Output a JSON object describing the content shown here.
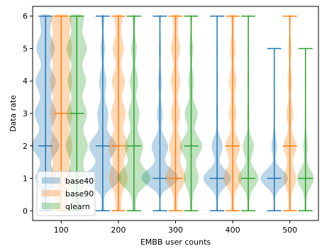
{
  "chart_data": {
    "type": "violin",
    "title": "",
    "xlabel": "EMBB user counts",
    "ylabel": "Data rate",
    "categories": [
      "100",
      "200",
      "300",
      "400",
      "500"
    ],
    "ylim": [
      -0.3,
      6.3
    ],
    "yticks": [
      0,
      1,
      2,
      3,
      4,
      5,
      6
    ],
    "grid": false,
    "legend_position": "lower-left",
    "series": [
      {
        "name": "base40",
        "color": "#1f77b4",
        "min": [
          0,
          0,
          0,
          0,
          0
        ],
        "max": [
          6,
          6,
          6,
          6,
          5
        ],
        "median": [
          2,
          2,
          1,
          1,
          1
        ],
        "density": [
          {
            "0": 0.35,
            "0.5": 0.25,
            "1": 0.55,
            "1.5": 0.3,
            "2": 0.75,
            "2.5": 0.35,
            "3": 0.6,
            "3.5": 0.3,
            "4": 0.55,
            "4.5": 0.25,
            "5": 0.5,
            "5.5": 0.25,
            "6": 0.3
          },
          {
            "0": 0.1,
            "0.5": 0.15,
            "1": 1.0,
            "1.5": 0.4,
            "2": 0.75,
            "2.5": 0.25,
            "3": 0.3,
            "3.5": 0.12,
            "4": 0.2,
            "4.5": 0.06,
            "5": 0.12,
            "5.5": 0.04,
            "6": 0.08
          },
          {
            "0": 0.05,
            "0.5": 0.1,
            "1": 1.0,
            "1.5": 0.3,
            "2": 0.45,
            "2.5": 0.1,
            "3": 0.15,
            "3.5": 0.05,
            "4": 0.1,
            "4.5": 0.03,
            "5": 0.06,
            "5.5": 0.02,
            "6": 0.04
          },
          {
            "0": 0.05,
            "0.5": 0.12,
            "1": 0.75,
            "1.5": 0.15,
            "2": 0.3,
            "2.5": 0.05,
            "3": 0.06,
            "3.5": 0.02,
            "4": 0.04,
            "4.5": 0.02,
            "5": 0.03,
            "5.5": 0.01,
            "6": 0.02
          },
          {
            "0": 0.05,
            "0.5": 0.1,
            "1": 0.75,
            "1.5": 0.1,
            "2": 0.15,
            "2.5": 0.04,
            "3": 0.03,
            "3.5": 0.01,
            "4": 0.02,
            "4.5": 0.01,
            "5": 0.02
          }
        ]
      },
      {
        "name": "base90",
        "color": "#ff7f0e",
        "min": [
          0,
          0,
          0,
          0,
          0
        ],
        "max": [
          6,
          6,
          6,
          6,
          6
        ],
        "median": [
          3,
          2,
          1,
          2,
          2
        ],
        "density": [
          {
            "0": 0.45,
            "0.5": 0.4,
            "1": 0.6,
            "1.5": 0.45,
            "2": 0.6,
            "2.5": 0.45,
            "3": 0.6,
            "3.5": 0.45,
            "4": 0.6,
            "4.5": 0.45,
            "5": 0.6,
            "5.5": 0.45,
            "6": 0.5
          },
          {
            "0": 0.15,
            "0.5": 0.2,
            "1": 0.5,
            "1.5": 0.3,
            "2": 0.55,
            "2.5": 0.25,
            "3": 0.4,
            "3.5": 0.2,
            "4": 0.35,
            "4.5": 0.15,
            "5": 0.3,
            "5.5": 0.15,
            "6": 0.2
          },
          {
            "0": 0.1,
            "0.5": 0.15,
            "1": 0.55,
            "1.5": 0.25,
            "2": 0.35,
            "2.5": 0.15,
            "3": 0.25,
            "3.5": 0.12,
            "4": 0.25,
            "4.5": 0.12,
            "5": 0.25,
            "5.5": 0.12,
            "6": 0.15
          },
          {
            "0": 0.1,
            "0.5": 0.12,
            "1": 0.5,
            "1.5": 0.2,
            "2": 0.4,
            "2.5": 0.12,
            "3": 0.2,
            "3.5": 0.1,
            "4": 0.2,
            "4.5": 0.08,
            "5": 0.15,
            "5.5": 0.06,
            "6": 0.1
          },
          {
            "0": 0.08,
            "0.5": 0.1,
            "1": 0.35,
            "1.5": 0.15,
            "2": 0.35,
            "2.5": 0.1,
            "3": 0.18,
            "3.5": 0.06,
            "4": 0.12,
            "4.5": 0.04,
            "5": 0.08,
            "5.5": 0.03,
            "6": 0.05
          }
        ]
      },
      {
        "name": "qlearn",
        "color": "#2ca02c",
        "min": [
          0,
          0,
          0,
          0,
          0
        ],
        "max": [
          6,
          6,
          6,
          6,
          5
        ],
        "median": [
          3,
          2,
          2,
          1,
          1
        ],
        "density": [
          {
            "0": 0.3,
            "0.5": 0.3,
            "1": 0.5,
            "1.5": 0.35,
            "2": 0.6,
            "2.5": 0.35,
            "3": 0.55,
            "3.5": 0.3,
            "4": 0.5,
            "4.5": 0.3,
            "5": 0.55,
            "5.5": 0.3,
            "6": 0.35
          },
          {
            "0": 0.1,
            "0.5": 0.2,
            "1": 0.9,
            "1.5": 0.35,
            "2": 0.5,
            "2.5": 0.2,
            "3": 0.3,
            "3.5": 0.12,
            "4": 0.22,
            "4.5": 0.08,
            "5": 0.15,
            "5.5": 0.05,
            "6": 0.08
          },
          {
            "0": 0.05,
            "0.5": 0.12,
            "1": 0.4,
            "1.5": 0.25,
            "2": 0.6,
            "2.5": 0.2,
            "3": 0.35,
            "3.5": 0.1,
            "4": 0.15,
            "4.5": 0.05,
            "5": 0.1,
            "5.5": 0.03,
            "6": 0.05
          },
          {
            "0": 0.05,
            "0.5": 0.12,
            "1": 0.55,
            "1.5": 0.15,
            "2": 0.3,
            "2.5": 0.05,
            "3": 0.06,
            "3.5": 0.02,
            "4": 0.04,
            "4.5": 0.02,
            "5": 0.03,
            "5.5": 0.01,
            "6": 0.02
          },
          {
            "0": 0.05,
            "0.5": 0.1,
            "1": 0.45,
            "1.5": 0.1,
            "2": 0.12,
            "2.5": 0.04,
            "3": 0.03,
            "3.5": 0.01,
            "4": 0.02,
            "4.5": 0.01,
            "5": 0.02
          }
        ]
      }
    ]
  }
}
